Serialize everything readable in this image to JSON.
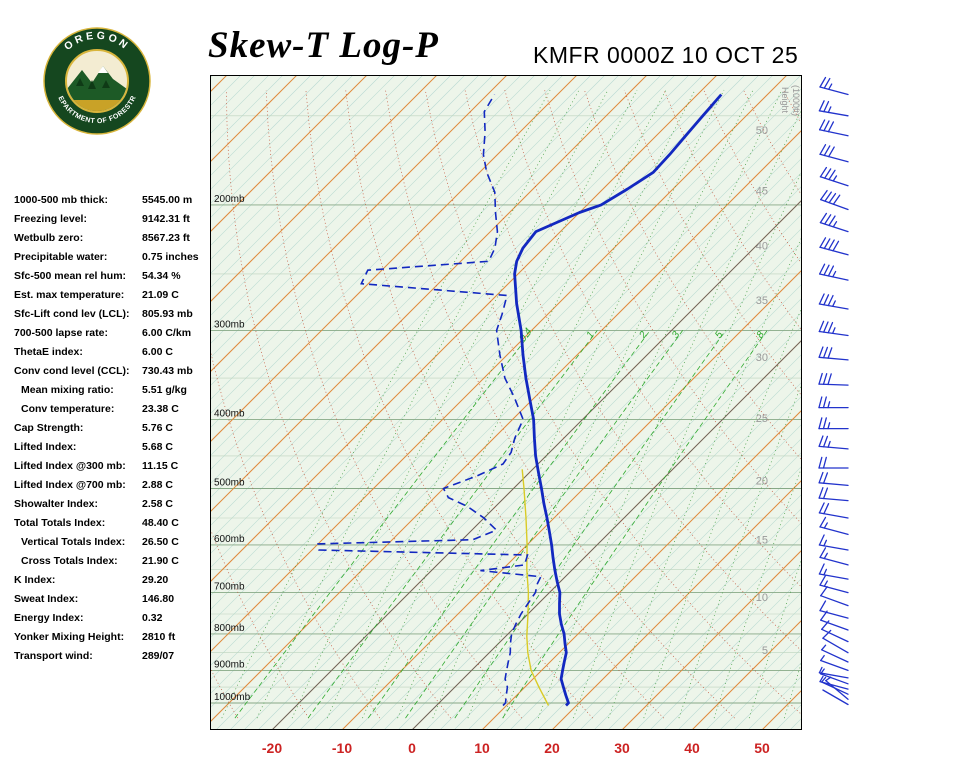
{
  "header": {
    "title": "Skew-T Log-P",
    "station_line": "KMFR 0000Z 10 OCT 25",
    "logo": {
      "arc_top": "OREGON",
      "arc_bottom": "DEPARTMENT OF FORESTRY"
    }
  },
  "indices": {
    "rows": [
      {
        "label": "1000-500 mb thick:",
        "value": "5545.00 m",
        "indent": false
      },
      {
        "label": "Freezing level:",
        "value": "9142.31 ft",
        "indent": false
      },
      {
        "label": "Wetbulb zero:",
        "value": "8567.23 ft",
        "indent": false
      },
      {
        "label": "Precipitable water:",
        "value": "0.75 inches",
        "indent": false
      },
      {
        "label": "Sfc-500 mean rel hum:",
        "value": "54.34 %",
        "indent": false
      },
      {
        "label": "Est. max temperature:",
        "value": "21.09 C",
        "indent": false
      },
      {
        "label": "Sfc-Lift cond lev (LCL):",
        "value": "805.93 mb",
        "indent": false
      },
      {
        "label": "700-500 lapse rate:",
        "value": "6.00 C/km",
        "indent": false
      },
      {
        "label": "ThetaE index:",
        "value": "6.00 C",
        "indent": false
      },
      {
        "label": "Conv cond level (CCL):",
        "value": "730.43 mb",
        "indent": false
      },
      {
        "label": "Mean mixing ratio:",
        "value": "5.51 g/kg",
        "indent": true
      },
      {
        "label": "Conv temperature:",
        "value": "23.38 C",
        "indent": true
      },
      {
        "label": "Cap Strength:",
        "value": "5.76 C",
        "indent": false
      },
      {
        "label": "Lifted Index:",
        "value": "5.68 C",
        "indent": false
      },
      {
        "label": "Lifted Index @300 mb:",
        "value": "11.15 C",
        "indent": false
      },
      {
        "label": "Lifted Index @700 mb:",
        "value": "2.88 C",
        "indent": false
      },
      {
        "label": "Showalter Index:",
        "value": "2.58 C",
        "indent": false
      },
      {
        "label": "Total Totals Index:",
        "value": "48.40 C",
        "indent": false
      },
      {
        "label": "Vertical Totals Index:",
        "value": "26.50 C",
        "indent": true
      },
      {
        "label": "Cross Totals Index:",
        "value": "21.90 C",
        "indent": true
      },
      {
        "label": "K Index:",
        "value": "29.20",
        "indent": false
      },
      {
        "label": "Sweat Index:",
        "value": "146.80",
        "indent": false
      },
      {
        "label": "Energy Index:",
        "value": "0.32",
        "indent": false
      },
      {
        "label": "Yonker Mixing Height:",
        "value": "2810 ft",
        "indent": false
      },
      {
        "label": "Transport wind:",
        "value": "289/07",
        "indent": false
      }
    ]
  },
  "chart_data": {
    "type": "skewt-log-p",
    "station": "KMFR",
    "valid_time": "0000Z 10 OCT 25",
    "pressure_unit": "mb",
    "pressure_levels": [
      200,
      300,
      400,
      500,
      600,
      700,
      800,
      900,
      1000
    ],
    "temp_axis": {
      "ticks": [
        -20,
        -10,
        0,
        10,
        20,
        30,
        40,
        50
      ],
      "unit": "C"
    },
    "height_axis": {
      "label_lines": [
        "Height",
        "(1000ft)"
      ],
      "ticks": [
        {
          "t": "50",
          "p": 157
        },
        {
          "t": "45",
          "p": 191
        },
        {
          "t": "40",
          "p": 228
        },
        {
          "t": "35",
          "p": 272
        },
        {
          "t": "30",
          "p": 327
        },
        {
          "t": "25",
          "p": 398
        },
        {
          "t": "20",
          "p": 487
        },
        {
          "t": "15",
          "p": 590
        },
        {
          "t": "10",
          "p": 710
        },
        {
          "t": "5",
          "p": 843
        }
      ]
    },
    "mixing_ratios": [
      {
        "label": "0.4",
        "w": 0.4
      },
      {
        "label": "1",
        "w": 1
      },
      {
        "label": "2",
        "w": 2
      },
      {
        "label": "3",
        "w": 3
      },
      {
        "label": "5",
        "w": 5
      },
      {
        "label": "8",
        "w": 8
      }
    ],
    "grid": {
      "isotherm_range_c": [
        -130,
        60
      ],
      "isotherm_step_c": 10,
      "minor_isotherm_step_c": 2,
      "reference_isotherms_c": [
        -20,
        0
      ],
      "dry_adiabat_theta_c": [
        -30,
        150,
        10
      ],
      "moist_adiabat_tw_c": [
        -30,
        55,
        5
      ],
      "pressure_line_step_mb": 50
    },
    "series": {
      "temperature_c_by_mb": [
        [
          1008,
          18.5
        ],
        [
          1000,
          18.5
        ],
        [
          975,
          17
        ],
        [
          950,
          15.5
        ],
        [
          925,
          14
        ],
        [
          900,
          13
        ],
        [
          875,
          12
        ],
        [
          850,
          11
        ],
        [
          825,
          9.5
        ],
        [
          800,
          8
        ],
        [
          775,
          6.2
        ],
        [
          750,
          4.5
        ],
        [
          725,
          3
        ],
        [
          700,
          1.5
        ],
        [
          675,
          -0.5
        ],
        [
          650,
          -2.5
        ],
        [
          625,
          -4.5
        ],
        [
          600,
          -6.5
        ],
        [
          575,
          -8.7
        ],
        [
          550,
          -11
        ],
        [
          525,
          -13.5
        ],
        [
          500,
          -16
        ],
        [
          475,
          -18.7
        ],
        [
          450,
          -21.5
        ],
        [
          425,
          -24.2
        ],
        [
          400,
          -27
        ],
        [
          375,
          -30.4
        ],
        [
          350,
          -34
        ],
        [
          325,
          -37.7
        ],
        [
          300,
          -41.5
        ],
        [
          275,
          -46
        ],
        [
          250,
          -50.5
        ],
        [
          240,
          -52
        ],
        [
          230,
          -53
        ],
        [
          218,
          -53.5
        ],
        [
          205,
          -50
        ],
        [
          200,
          -48
        ],
        [
          190,
          -46.5
        ],
        [
          180,
          -45.2
        ],
        [
          170,
          -45.4
        ],
        [
          160,
          -45.8
        ],
        [
          150,
          -46.2
        ],
        [
          140,
          -46.6
        ]
      ],
      "dewpoint_c_by_mb": [
        [
          1008,
          9.5
        ],
        [
          1000,
          9.5
        ],
        [
          975,
          8.5
        ],
        [
          950,
          7.5
        ],
        [
          925,
          6
        ],
        [
          900,
          5
        ],
        [
          875,
          4
        ],
        [
          850,
          3
        ],
        [
          825,
          1.7
        ],
        [
          800,
          0.5
        ],
        [
          775,
          -0.3
        ],
        [
          750,
          -1
        ],
        [
          725,
          -1.5
        ],
        [
          700,
          -2
        ],
        [
          680,
          -3
        ],
        [
          665,
          -3.5
        ],
        [
          652,
          -13
        ],
        [
          640,
          -7.5
        ],
        [
          620,
          -8.5
        ],
        [
          610,
          -39
        ],
        [
          598,
          -40
        ],
        [
          590,
          -18.5
        ],
        [
          572,
          -16.5
        ],
        [
          550,
          -20
        ],
        [
          530,
          -24
        ],
        [
          515,
          -28
        ],
        [
          500,
          -30
        ],
        [
          480,
          -27
        ],
        [
          462,
          -25
        ],
        [
          445,
          -25.5
        ],
        [
          425,
          -27
        ],
        [
          400,
          -28.5
        ],
        [
          372,
          -33
        ],
        [
          350,
          -37
        ],
        [
          325,
          -41
        ],
        [
          300,
          -45
        ],
        [
          285,
          -46.5
        ],
        [
          268,
          -48.5
        ],
        [
          258,
          -71
        ],
        [
          247,
          -72
        ],
        [
          240,
          -56
        ],
        [
          230,
          -57
        ],
        [
          218,
          -59
        ],
        [
          205,
          -62
        ],
        [
          192,
          -65
        ],
        [
          180,
          -69
        ],
        [
          170,
          -72
        ],
        [
          158,
          -75
        ],
        [
          148,
          -78
        ],
        [
          140,
          -79
        ]
      ],
      "parcel_c_by_mb": [
        [
          1008,
          16
        ],
        [
          950,
          12
        ],
        [
          900,
          8.5
        ],
        [
          850,
          5.5
        ],
        [
          806,
          3
        ],
        [
          750,
          0
        ],
        [
          700,
          -3
        ],
        [
          650,
          -6.5
        ],
        [
          600,
          -10
        ],
        [
          550,
          -14
        ],
        [
          500,
          -18.5
        ],
        [
          470,
          -21.5
        ]
      ]
    },
    "winds_mb_dir_kt": [
      [
        1005,
        300,
        4
      ],
      [
        988,
        310,
        5
      ],
      [
        972,
        295,
        5
      ],
      [
        956,
        285,
        6
      ],
      [
        940,
        290,
        7
      ],
      [
        922,
        280,
        7
      ],
      [
        900,
        290,
        8
      ],
      [
        876,
        295,
        8
      ],
      [
        850,
        300,
        10
      ],
      [
        820,
        295,
        10
      ],
      [
        790,
        290,
        10
      ],
      [
        760,
        285,
        12
      ],
      [
        730,
        290,
        12
      ],
      [
        700,
        285,
        15
      ],
      [
        670,
        280,
        15
      ],
      [
        640,
        285,
        15
      ],
      [
        610,
        280,
        18
      ],
      [
        580,
        285,
        18
      ],
      [
        550,
        280,
        20
      ],
      [
        520,
        275,
        20
      ],
      [
        495,
        275,
        22
      ],
      [
        468,
        270,
        22
      ],
      [
        440,
        275,
        25
      ],
      [
        412,
        270,
        25
      ],
      [
        385,
        270,
        28
      ],
      [
        358,
        272,
        30
      ],
      [
        330,
        275,
        32
      ],
      [
        305,
        278,
        35
      ],
      [
        280,
        280,
        35
      ],
      [
        255,
        282,
        38
      ],
      [
        235,
        285,
        40
      ],
      [
        218,
        288,
        38
      ],
      [
        203,
        290,
        40
      ],
      [
        188,
        288,
        35
      ],
      [
        174,
        285,
        32
      ],
      [
        160,
        282,
        30
      ],
      [
        150,
        280,
        28
      ],
      [
        140,
        285,
        25
      ]
    ],
    "colors": {
      "plot_bg": "#edf5ea",
      "minor_isotherm": "#b9dad2",
      "isotherm": "#e08a3c",
      "dark_isotherm": "#666666",
      "pressure_line": "#86a886",
      "pressure_line_minor": "#bdd3bd",
      "dry_adiabat": "#c2543a",
      "moist_adiabat": "#3d9a3d",
      "mixing": "#2faa2f",
      "mixing_label": "#2faa2f",
      "temperature": "#1228c0",
      "dewpoint": "#1228c0",
      "parcel": "#d9cb26",
      "temp_axis": "#cc2222",
      "pressure_label": "#111111",
      "height_label": "#999999",
      "barb": "#2233cc",
      "border": "#000000"
    }
  }
}
